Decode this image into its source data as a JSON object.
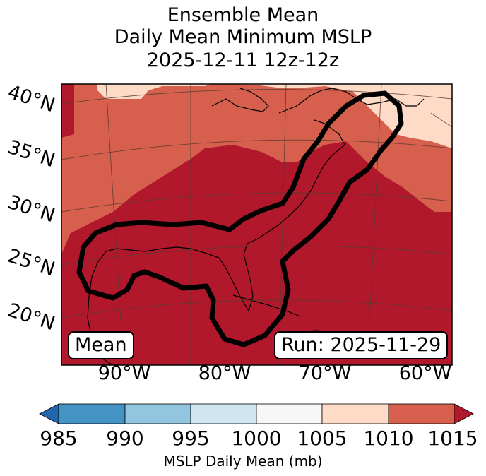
{
  "title": {
    "line1": "Ensemble Mean",
    "line2": "Daily Mean Minimum MSLP",
    "line3": "2025-12-11 12z-12z"
  },
  "map": {
    "lat_labels": [
      "40°N",
      "35°N",
      "30°N",
      "25°N",
      "20°N"
    ],
    "lon_labels": [
      "90°W",
      "80°W",
      "70°W",
      "60°W"
    ],
    "mean_label": "Mean",
    "run_label": "Run: 2025-11-29"
  },
  "colorbar": {
    "ticks": [
      "985",
      "990",
      "995",
      "1000",
      "1005",
      "1010",
      "1015"
    ],
    "label": "MSLP Daily Mean (mb)",
    "colors": {
      "under": "#2166ac",
      "b985_990": "#4393c3",
      "b990_995": "#92c5de",
      "b995_1000": "#d1e5f0",
      "b1000_1005": "#f7f7f7",
      "b1005_1010": "#fddbc7",
      "b1010_1015": "#d6604d",
      "over": "#b2182b"
    }
  }
}
